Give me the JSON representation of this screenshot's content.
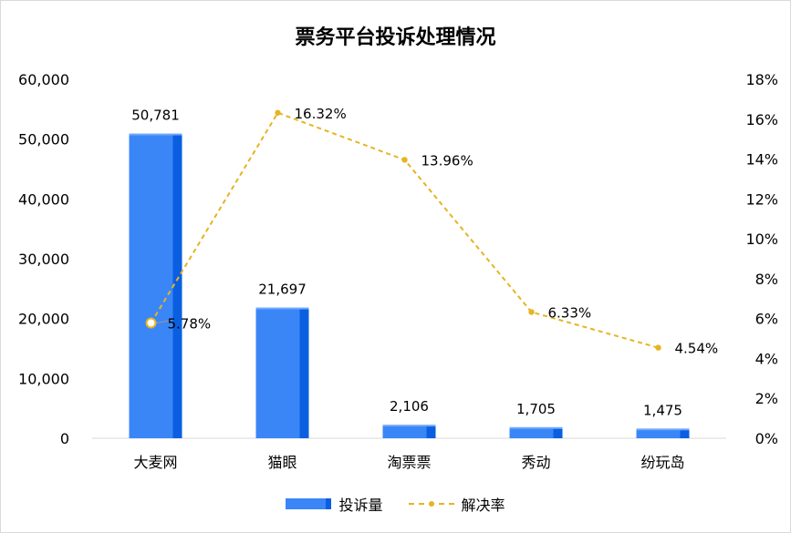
{
  "chart_data": {
    "type": "bar",
    "title": "票务平台投诉处理情况",
    "categories": [
      "大麦网",
      "猫眼",
      "淘票票",
      "秀动",
      "纷玩岛"
    ],
    "series": [
      {
        "name": "投诉量",
        "type": "bar",
        "axis": "left",
        "values": [
          50781,
          21697,
          2106,
          1705,
          1475
        ],
        "labels": [
          "50,781",
          "21,697",
          "2,106",
          "1,705",
          "1,475"
        ],
        "color": "#3a86f7",
        "side_color": "#0a5fe0"
      },
      {
        "name": "解决率",
        "type": "line",
        "axis": "right",
        "style": "dashed",
        "values": [
          5.78,
          16.32,
          13.96,
          6.33,
          4.54
        ],
        "labels": [
          "5.78%",
          "16.32%",
          "13.96%",
          "6.33%",
          "4.54%"
        ],
        "color": "#e6b422"
      }
    ],
    "y_left": {
      "min": 0,
      "max": 60000,
      "ticks": [
        "0",
        "10,000",
        "20,000",
        "30,000",
        "40,000",
        "50,000",
        "60,000"
      ]
    },
    "y_right": {
      "min": 0,
      "max": 18,
      "ticks": [
        "0%",
        "2%",
        "4%",
        "6%",
        "8%",
        "10%",
        "12%",
        "14%",
        "16%",
        "18%"
      ]
    },
    "grid": false,
    "legend": "bottom"
  }
}
